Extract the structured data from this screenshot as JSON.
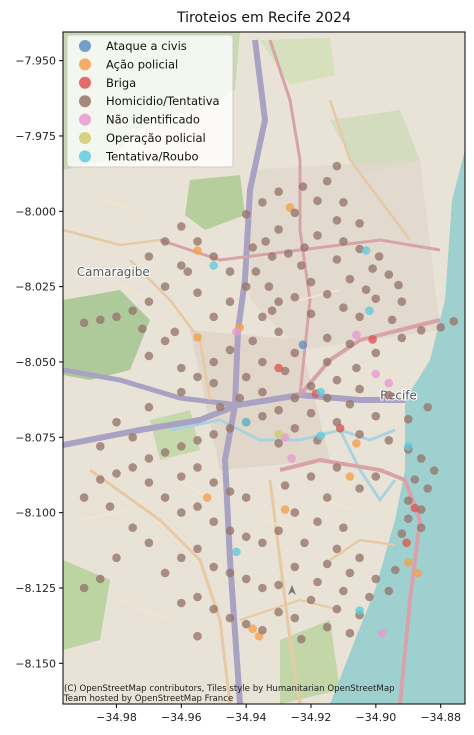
{
  "chart_data": {
    "type": "scatter",
    "title": "Tiroteios em Recife 2024",
    "xlabel": "",
    "ylabel": "",
    "xlim": [
      -34.9965,
      -34.8725
    ],
    "ylim": [
      -8.1635,
      -7.9405
    ],
    "xticks": [
      -34.98,
      -34.96,
      -34.94,
      -34.92,
      -34.9,
      -34.88
    ],
    "xtick_labels": [
      "−34.98",
      "−34.96",
      "−34.94",
      "−34.92",
      "−34.90",
      "−34.88"
    ],
    "yticks": [
      -7.95,
      -7.975,
      -8.0,
      -8.025,
      -8.05,
      -8.075,
      -8.1,
      -8.125,
      -8.15
    ],
    "ytick_labels": [
      "−7.950",
      "−7.975",
      "−8.000",
      "−8.025",
      "−8.050",
      "−8.075",
      "−8.100",
      "−8.125",
      "−8.150"
    ],
    "legend_position": "top-left",
    "grid": false,
    "basemap_labels": [
      {
        "text": "Camaragibe",
        "x": -34.981,
        "y": -8.0215
      },
      {
        "text": "Recife",
        "x": -34.893,
        "y": -8.0625
      }
    ],
    "attribution": [
      "(C) OpenStreetMap contributors, Tiles style by Humanitarian OpenStreetMap",
      "Team hosted by OpenStreetMap France"
    ],
    "series": [
      {
        "name": "Ataque a civis",
        "color": "#5b8fc4",
        "points": [
          [
            -34.9225,
            -8.0443
          ]
        ]
      },
      {
        "name": "Ação policial",
        "color": "#f5a04c",
        "points": [
          [
            -34.9265,
            -7.9987
          ],
          [
            -34.955,
            -8.013
          ],
          [
            -34.942,
            -8.0385
          ],
          [
            -34.955,
            -8.0418
          ],
          [
            -34.952,
            -8.095
          ],
          [
            -34.928,
            -8.099
          ],
          [
            -34.906,
            -8.077
          ],
          [
            -34.908,
            -8.088
          ],
          [
            -34.89,
            -8.1165
          ],
          [
            -34.887,
            -8.12
          ],
          [
            -34.938,
            -8.1385
          ],
          [
            -34.936,
            -8.141
          ]
        ]
      },
      {
        "name": "Briga",
        "color": "#dd5555",
        "points": [
          [
            -34.901,
            -8.0425
          ],
          [
            -34.9185,
            -8.0605
          ],
          [
            -34.888,
            -8.0985
          ],
          [
            -34.8905,
            -8.11
          ],
          [
            -34.911,
            -8.072
          ],
          [
            -34.93,
            -8.052
          ]
        ]
      },
      {
        "name": "Homicidio/Tentativa",
        "color": "#96756b",
        "points": [
          [
            -34.912,
            -7.985
          ],
          [
            -34.915,
            -7.99
          ],
          [
            -34.9225,
            -7.9918
          ],
          [
            -34.93,
            -7.9935
          ],
          [
            -34.918,
            -7.9965
          ],
          [
            -34.91,
            -7.997
          ],
          [
            -34.935,
            -7.997
          ],
          [
            -34.925,
            -8.0005
          ],
          [
            -34.94,
            -8.001
          ],
          [
            -34.912,
            -8.003
          ],
          [
            -34.905,
            -8.004
          ],
          [
            -34.93,
            -8.006
          ],
          [
            -34.918,
            -8.008
          ],
          [
            -34.934,
            -8.01
          ],
          [
            -34.91,
            -8.01
          ],
          [
            -34.922,
            -8.012
          ],
          [
            -34.905,
            -8.0125
          ],
          [
            -34.927,
            -8.014
          ],
          [
            -34.899,
            -8.015
          ],
          [
            -34.912,
            -8.016
          ],
          [
            -34.923,
            -8.018
          ],
          [
            -34.901,
            -8.019
          ],
          [
            -34.896,
            -8.021
          ],
          [
            -34.908,
            -8.0225
          ],
          [
            -34.92,
            -8.0235
          ],
          [
            -34.893,
            -8.0245
          ],
          [
            -34.903,
            -8.026
          ],
          [
            -34.915,
            -8.0275
          ],
          [
            -34.925,
            -8.0285
          ],
          [
            -34.9,
            -8.029
          ],
          [
            -34.892,
            -8.03
          ],
          [
            -34.91,
            -8.032
          ],
          [
            -34.92,
            -8.034
          ],
          [
            -34.905,
            -8.035
          ],
          [
            -34.895,
            -8.036
          ],
          [
            -34.932,
            -8.033
          ],
          [
            -34.892,
            -8.042
          ],
          [
            -34.886,
            -8.0395
          ],
          [
            -34.88,
            -8.0385
          ],
          [
            -34.876,
            -8.0365
          ],
          [
            -34.915,
            -8.042
          ],
          [
            -34.908,
            -8.044
          ],
          [
            -34.925,
            -8.047
          ],
          [
            -34.9,
            -8.047
          ],
          [
            -34.915,
            -8.05
          ],
          [
            -34.906,
            -8.052
          ],
          [
            -34.928,
            -8.053
          ],
          [
            -34.912,
            -8.056
          ],
          [
            -34.92,
            -8.058
          ],
          [
            -34.905,
            -8.059
          ],
          [
            -34.925,
            -8.062
          ],
          [
            -34.915,
            -8.062
          ],
          [
            -34.908,
            -8.064
          ],
          [
            -34.93,
            -8.066
          ],
          [
            -34.92,
            -8.067
          ],
          [
            -34.9,
            -8.068
          ],
          [
            -34.912,
            -8.07
          ],
          [
            -34.925,
            -8.072
          ],
          [
            -34.905,
            -8.074
          ],
          [
            -34.918,
            -8.076
          ],
          [
            -34.93,
            -8.077
          ],
          [
            -34.896,
            -8.061
          ],
          [
            -34.89,
            -8.069
          ],
          [
            -34.884,
            -8.065
          ],
          [
            -34.896,
            -8.076
          ],
          [
            -34.89,
            -8.079
          ],
          [
            -34.886,
            -8.082
          ],
          [
            -34.882,
            -8.086
          ],
          [
            -34.888,
            -8.089
          ],
          [
            -34.884,
            -8.092
          ],
          [
            -34.89,
            -8.096
          ],
          [
            -34.886,
            -8.099
          ],
          [
            -34.89,
            -8.102
          ],
          [
            -34.886,
            -8.105
          ],
          [
            -34.892,
            -8.107
          ],
          [
            -34.9,
            -8.088
          ],
          [
            -34.905,
            -8.092
          ],
          [
            -34.912,
            -8.085
          ],
          [
            -34.92,
            -8.088
          ],
          [
            -34.928,
            -8.091
          ],
          [
            -34.915,
            -8.095
          ],
          [
            -34.925,
            -8.1
          ],
          [
            -34.918,
            -8.103
          ],
          [
            -34.91,
            -8.105
          ],
          [
            -34.93,
            -8.106
          ],
          [
            -34.922,
            -8.11
          ],
          [
            -34.912,
            -8.112
          ],
          [
            -34.905,
            -8.115
          ],
          [
            -34.915,
            -8.117
          ],
          [
            -34.925,
            -8.118
          ],
          [
            -34.908,
            -8.12
          ],
          [
            -34.9,
            -8.122
          ],
          [
            -34.918,
            -8.123
          ],
          [
            -34.93,
            -8.124
          ],
          [
            -34.91,
            -8.126
          ],
          [
            -34.902,
            -8.128
          ],
          [
            -34.92,
            -8.129
          ],
          [
            -34.912,
            -8.132
          ],
          [
            -34.905,
            -8.134
          ],
          [
            -34.925,
            -8.135
          ],
          [
            -34.915,
            -8.138
          ],
          [
            -34.908,
            -8.14
          ],
          [
            -34.923,
            -8.142
          ],
          [
            -34.93,
            -8.133
          ],
          [
            -34.896,
            -8.126
          ],
          [
            -34.894,
            -8.119
          ],
          [
            -34.96,
            -8.018
          ],
          [
            -34.965,
            -8.025
          ],
          [
            -34.955,
            -8.027
          ],
          [
            -34.97,
            -8.03
          ],
          [
            -34.975,
            -8.033
          ],
          [
            -34.98,
            -8.035
          ],
          [
            -34.985,
            -8.036
          ],
          [
            -34.99,
            -8.037
          ],
          [
            -34.972,
            -8.039
          ],
          [
            -34.962,
            -8.04
          ],
          [
            -34.95,
            -8.035
          ],
          [
            -34.945,
            -8.03
          ],
          [
            -34.94,
            -8.025
          ],
          [
            -34.945,
            -8.02
          ],
          [
            -34.95,
            -8.015
          ],
          [
            -34.955,
            -8.01
          ],
          [
            -34.96,
            -8.005
          ],
          [
            -34.965,
            -8.01
          ],
          [
            -34.97,
            -8.015
          ],
          [
            -34.958,
            -8.02
          ],
          [
            -34.945,
            -8.046
          ],
          [
            -34.95,
            -8.05
          ],
          [
            -34.955,
            -8.055
          ],
          [
            -34.94,
            -8.055
          ],
          [
            -34.935,
            -8.06
          ],
          [
            -34.942,
            -8.062
          ],
          [
            -34.948,
            -8.065
          ],
          [
            -34.935,
            -8.068
          ],
          [
            -34.94,
            -8.07
          ],
          [
            -34.945,
            -8.072
          ],
          [
            -34.95,
            -8.074
          ],
          [
            -34.955,
            -8.076
          ],
          [
            -34.96,
            -8.078
          ],
          [
            -34.965,
            -8.08
          ],
          [
            -34.97,
            -8.082
          ],
          [
            -34.975,
            -8.085
          ],
          [
            -34.98,
            -8.087
          ],
          [
            -34.985,
            -8.089
          ],
          [
            -34.955,
            -8.085
          ],
          [
            -34.96,
            -8.088
          ],
          [
            -34.95,
            -8.09
          ],
          [
            -34.945,
            -8.093
          ],
          [
            -34.94,
            -8.095
          ],
          [
            -34.955,
            -8.098
          ],
          [
            -34.96,
            -8.1
          ],
          [
            -34.95,
            -8.103
          ],
          [
            -34.945,
            -8.106
          ],
          [
            -34.94,
            -8.108
          ],
          [
            -34.935,
            -8.11
          ],
          [
            -34.955,
            -8.112
          ],
          [
            -34.96,
            -8.115
          ],
          [
            -34.95,
            -8.118
          ],
          [
            -34.945,
            -8.12
          ],
          [
            -34.94,
            -8.122
          ],
          [
            -34.935,
            -8.125
          ],
          [
            -34.955,
            -8.128
          ],
          [
            -34.96,
            -8.13
          ],
          [
            -34.95,
            -8.132
          ],
          [
            -34.945,
            -8.135
          ],
          [
            -34.94,
            -8.137
          ],
          [
            -34.935,
            -8.139
          ],
          [
            -34.955,
            -8.141
          ],
          [
            -34.965,
            -8.12
          ],
          [
            -34.97,
            -8.11
          ],
          [
            -34.975,
            -8.105
          ],
          [
            -34.98,
            -8.115
          ],
          [
            -34.985,
            -8.122
          ],
          [
            -34.99,
            -8.125
          ],
          [
            -34.95,
            -8.057
          ],
          [
            -34.96,
            -8.06
          ],
          [
            -34.97,
            -8.065
          ],
          [
            -34.98,
            -8.07
          ],
          [
            -34.975,
            -8.075
          ],
          [
            -34.985,
            -8.078
          ],
          [
            -34.99,
            -8.095
          ],
          [
            -34.982,
            -8.098
          ],
          [
            -34.97,
            -8.09
          ],
          [
            -34.965,
            -8.095
          ],
          [
            -34.965,
            -8.043
          ],
          [
            -34.97,
            -8.048
          ],
          [
            -34.96,
            -8.052
          ],
          [
            -34.935,
            -8.05
          ],
          [
            -34.938,
            -8.043
          ],
          [
            -34.93,
            -8.04
          ],
          [
            -34.935,
            -8.035
          ],
          [
            -34.93,
            -8.03
          ],
          [
            -34.933,
            -8.025
          ],
          [
            -34.937,
            -8.02
          ],
          [
            -34.932,
            -8.015
          ],
          [
            -34.938,
            -8.012
          ]
        ]
      },
      {
        "name": "Não identificado",
        "color": "#e89ad1",
        "points": [
          [
            -34.943,
            -8.04
          ],
          [
            -34.906,
            -8.041
          ],
          [
            -34.896,
            -8.057
          ],
          [
            -34.9,
            -8.054
          ],
          [
            -34.928,
            -8.075
          ],
          [
            -34.898,
            -8.14
          ],
          [
            -34.926,
            -8.082
          ]
        ]
      },
      {
        "name": "Operação policial",
        "color": "#cfcb6d",
        "points": [
          [
            -34.93,
            -8.074
          ]
        ]
      },
      {
        "name": "Tentativa/Roubo",
        "color": "#5fcbdc",
        "points": [
          [
            -34.903,
            -8.013
          ],
          [
            -34.95,
            -8.018
          ],
          [
            -34.902,
            -8.033
          ],
          [
            -34.94,
            -8.07
          ],
          [
            -34.917,
            -8.06
          ],
          [
            -34.917,
            -8.0745
          ],
          [
            -34.89,
            -8.078
          ],
          [
            -34.943,
            -8.113
          ],
          [
            -34.905,
            -8.1325
          ]
        ]
      }
    ]
  }
}
